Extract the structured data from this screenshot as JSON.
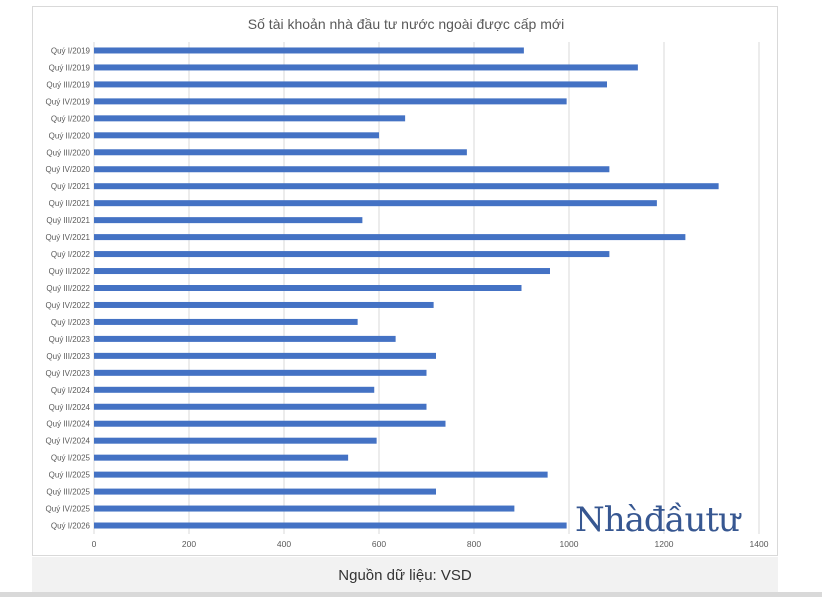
{
  "title": "Số tài khoản nhà đầu tư nước ngoài được cấp mới",
  "caption": "Nguồn dữ liệu: VSD",
  "watermark": "Nhàđầutư",
  "colors": {
    "bar": "#4472c4",
    "grid": "#d9d9d9",
    "label": "#595959",
    "watermark": "#2d4f8c"
  },
  "chart_data": {
    "type": "bar",
    "orientation": "horizontal",
    "title": "Số tài khoản nhà đầu tư nước ngoài được cấp mới",
    "categories": [
      "Quý I/2019",
      "Quý II/2019",
      "Quý III/2019",
      "Quý IV/2019",
      "Quý I/2020",
      "Quý II/2020",
      "Quý III/2020",
      "Quý IV/2020",
      "Quý I/2021",
      "Quý II/2021",
      "Quý III/2021",
      "Quý IV/2021",
      "Quý I/2022",
      "Quý II/2022",
      "Quý III/2022",
      "Quý IV/2022",
      "Quý I/2023",
      "Quý II/2023",
      "Quý III/2023",
      "Quý IV/2023",
      "Quý I/2024",
      "Quý II/2024",
      "Quý III/2024",
      "Quý IV/2024",
      "Quý I/2025",
      "Quý II/2025",
      "Quý III/2025",
      "Quý IV/2025",
      "Quý I/2026"
    ],
    "values": [
      905,
      1145,
      1080,
      995,
      655,
      600,
      785,
      1085,
      1315,
      1185,
      565,
      1245,
      1085,
      960,
      900,
      715,
      555,
      635,
      720,
      700,
      590,
      700,
      740,
      595,
      535,
      955,
      720,
      885,
      995
    ],
    "xlim": [
      0,
      1400
    ],
    "xticks": [
      0,
      200,
      400,
      600,
      800,
      1000,
      1200,
      1400
    ],
    "grid": true,
    "legend": "none"
  }
}
